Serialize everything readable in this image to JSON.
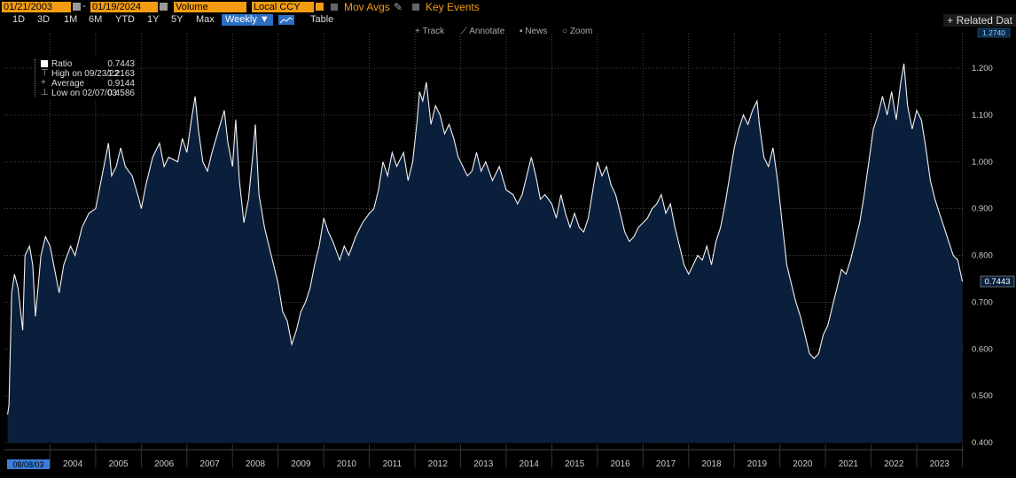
{
  "toolbar": {
    "start_date": "01/21/2003",
    "end_date": "01/19/2024",
    "volume_label": "Volume",
    "currency_label": "Local CCY",
    "mov_avgs_label": "Mov Avgs",
    "key_events_label": "Key Events",
    "range_buttons": [
      "1D",
      "3D",
      "1M",
      "6M",
      "YTD",
      "1Y",
      "5Y",
      "Max"
    ],
    "frequency_label": "Weekly ▼",
    "table_label": "Table",
    "related_label": "+ Related Dat",
    "track_label": "Track",
    "annotate_label": "Annotate",
    "news_label": "News",
    "zoom_label": "Zoom"
  },
  "legend": {
    "ratio_label": "Ratio",
    "ratio_value": "0.7443",
    "high_label": "High on 09/23/22",
    "high_value": "1.2163",
    "average_label": "Average",
    "average_value": "0.9144",
    "low_label": "Low on 02/07/03",
    "low_value": "0.4586"
  },
  "colors": {
    "area_fill": "#0a1f3c",
    "line": "#f2f2f2",
    "last_value_box": "#0a1f3c",
    "top_value_box": "#0a2a4a"
  },
  "chart_data": {
    "type": "area",
    "ylim": [
      0.4,
      1.274
    ],
    "yticks": [
      "1.200",
      "1.100",
      "1.000",
      "0.900",
      "0.800",
      "0.700",
      "0.600",
      "0.500",
      "0.400"
    ],
    "x_axis_start_label": "08/08/03",
    "xticks": [
      "2004",
      "2005",
      "2006",
      "2007",
      "2008",
      "2009",
      "2010",
      "2011",
      "2012",
      "2013",
      "2014",
      "2015",
      "2016",
      "2017",
      "2018",
      "2019",
      "2020",
      "2021",
      "2022",
      "2023"
    ],
    "top_value_label": "1.2740",
    "last_value_label": "0.7443",
    "series": [
      {
        "values": [
          [
            "2003.07",
            0.46
          ],
          [
            "2003.10",
            0.48
          ],
          [
            "2003.16",
            0.72
          ],
          [
            "2003.22",
            0.76
          ],
          [
            "2003.30",
            0.73
          ],
          [
            "2003.40",
            0.64
          ],
          [
            "2003.45",
            0.8
          ],
          [
            "2003.55",
            0.82
          ],
          [
            "2003.62",
            0.78
          ],
          [
            "2003.68",
            0.67
          ],
          [
            "2003.80",
            0.8
          ],
          [
            "2003.90",
            0.84
          ],
          [
            "2004.00",
            0.82
          ],
          [
            "2004.10",
            0.77
          ],
          [
            "2004.20",
            0.72
          ],
          [
            "2004.30",
            0.78
          ],
          [
            "2004.45",
            0.82
          ],
          [
            "2004.55",
            0.8
          ],
          [
            "2004.70",
            0.86
          ],
          [
            "2004.85",
            0.89
          ],
          [
            "2005.00",
            0.9
          ],
          [
            "2005.10",
            0.95
          ],
          [
            "2005.20",
            1.0
          ],
          [
            "2005.28",
            1.04
          ],
          [
            "2005.35",
            0.97
          ],
          [
            "2005.45",
            0.99
          ],
          [
            "2005.55",
            1.03
          ],
          [
            "2005.65",
            0.99
          ],
          [
            "2005.80",
            0.97
          ],
          [
            "2005.95",
            0.92
          ],
          [
            "2006.00",
            0.9
          ],
          [
            "2006.10",
            0.95
          ],
          [
            "2006.25",
            1.01
          ],
          [
            "2006.40",
            1.04
          ],
          [
            "2006.50",
            0.99
          ],
          [
            "2006.60",
            1.01
          ],
          [
            "2006.80",
            1.0
          ],
          [
            "2006.90",
            1.05
          ],
          [
            "2007.00",
            1.02
          ],
          [
            "2007.10",
            1.09
          ],
          [
            "2007.18",
            1.14
          ],
          [
            "2007.25",
            1.07
          ],
          [
            "2007.35",
            1.0
          ],
          [
            "2007.45",
            0.98
          ],
          [
            "2007.55",
            1.02
          ],
          [
            "2007.70",
            1.07
          ],
          [
            "2007.82",
            1.11
          ],
          [
            "2007.90",
            1.04
          ],
          [
            "2008.00",
            0.99
          ],
          [
            "2008.07",
            1.09
          ],
          [
            "2008.15",
            0.96
          ],
          [
            "2008.25",
            0.87
          ],
          [
            "2008.35",
            0.92
          ],
          [
            "2008.45",
            1.02
          ],
          [
            "2008.50",
            1.08
          ],
          [
            "2008.58",
            0.93
          ],
          [
            "2008.70",
            0.86
          ],
          [
            "2008.80",
            0.82
          ],
          [
            "2008.90",
            0.78
          ],
          [
            "2009.00",
            0.74
          ],
          [
            "2009.10",
            0.68
          ],
          [
            "2009.20",
            0.66
          ],
          [
            "2009.30",
            0.61
          ],
          [
            "2009.40",
            0.64
          ],
          [
            "2009.50",
            0.68
          ],
          [
            "2009.60",
            0.7
          ],
          [
            "2009.70",
            0.73
          ],
          [
            "2009.80",
            0.78
          ],
          [
            "2009.90",
            0.82
          ],
          [
            "2010.00",
            0.88
          ],
          [
            "2010.10",
            0.85
          ],
          [
            "2010.20",
            0.83
          ],
          [
            "2010.35",
            0.79
          ],
          [
            "2010.45",
            0.82
          ],
          [
            "2010.55",
            0.8
          ],
          [
            "2010.70",
            0.84
          ],
          [
            "2010.85",
            0.87
          ],
          [
            "2011.00",
            0.89
          ],
          [
            "2011.10",
            0.9
          ],
          [
            "2011.20",
            0.94
          ],
          [
            "2011.30",
            1.0
          ],
          [
            "2011.40",
            0.97
          ],
          [
            "2011.50",
            1.02
          ],
          [
            "2011.60",
            0.99
          ],
          [
            "2011.75",
            1.02
          ],
          [
            "2011.85",
            0.96
          ],
          [
            "2011.95",
            1.0
          ],
          [
            "2012.05",
            1.09
          ],
          [
            "2012.10",
            1.15
          ],
          [
            "2012.17",
            1.13
          ],
          [
            "2012.25",
            1.17
          ],
          [
            "2012.35",
            1.08
          ],
          [
            "2012.45",
            1.12
          ],
          [
            "2012.55",
            1.1
          ],
          [
            "2012.65",
            1.06
          ],
          [
            "2012.75",
            1.08
          ],
          [
            "2012.85",
            1.05
          ],
          [
            "2012.95",
            1.01
          ],
          [
            "2013.05",
            0.99
          ],
          [
            "2013.15",
            0.97
          ],
          [
            "2013.25",
            0.98
          ],
          [
            "2013.35",
            1.02
          ],
          [
            "2013.45",
            0.98
          ],
          [
            "2013.55",
            1.0
          ],
          [
            "2013.70",
            0.96
          ],
          [
            "2013.85",
            0.99
          ],
          [
            "2014.00",
            0.94
          ],
          [
            "2014.15",
            0.93
          ],
          [
            "2014.25",
            0.91
          ],
          [
            "2014.35",
            0.93
          ],
          [
            "2014.45",
            0.97
          ],
          [
            "2014.55",
            1.01
          ],
          [
            "2014.65",
            0.97
          ],
          [
            "2014.75",
            0.92
          ],
          [
            "2014.85",
            0.93
          ],
          [
            "2015.00",
            0.91
          ],
          [
            "2015.10",
            0.88
          ],
          [
            "2015.20",
            0.93
          ],
          [
            "2015.30",
            0.89
          ],
          [
            "2015.40",
            0.86
          ],
          [
            "2015.50",
            0.89
          ],
          [
            "2015.60",
            0.86
          ],
          [
            "2015.70",
            0.85
          ],
          [
            "2015.80",
            0.88
          ],
          [
            "2015.90",
            0.94
          ],
          [
            "2016.00",
            1.0
          ],
          [
            "2016.10",
            0.97
          ],
          [
            "2016.20",
            0.99
          ],
          [
            "2016.30",
            0.95
          ],
          [
            "2016.40",
            0.93
          ],
          [
            "2016.50",
            0.89
          ],
          [
            "2016.60",
            0.85
          ],
          [
            "2016.70",
            0.83
          ],
          [
            "2016.80",
            0.84
          ],
          [
            "2016.90",
            0.86
          ],
          [
            "2017.00",
            0.87
          ],
          [
            "2017.10",
            0.88
          ],
          [
            "2017.20",
            0.9
          ],
          [
            "2017.30",
            0.91
          ],
          [
            "2017.40",
            0.93
          ],
          [
            "2017.50",
            0.89
          ],
          [
            "2017.60",
            0.91
          ],
          [
            "2017.70",
            0.86
          ],
          [
            "2017.80",
            0.82
          ],
          [
            "2017.90",
            0.78
          ],
          [
            "2018.00",
            0.76
          ],
          [
            "2018.10",
            0.78
          ],
          [
            "2018.20",
            0.8
          ],
          [
            "2018.30",
            0.79
          ],
          [
            "2018.40",
            0.82
          ],
          [
            "2018.50",
            0.78
          ],
          [
            "2018.60",
            0.83
          ],
          [
            "2018.70",
            0.86
          ],
          [
            "2018.80",
            0.91
          ],
          [
            "2018.90",
            0.97
          ],
          [
            "2019.00",
            1.03
          ],
          [
            "2019.10",
            1.07
          ],
          [
            "2019.20",
            1.1
          ],
          [
            "2019.30",
            1.08
          ],
          [
            "2019.40",
            1.11
          ],
          [
            "2019.50",
            1.13
          ],
          [
            "2019.55",
            1.08
          ],
          [
            "2019.65",
            1.01
          ],
          [
            "2019.75",
            0.99
          ],
          [
            "2019.85",
            1.03
          ],
          [
            "2019.95",
            0.96
          ],
          [
            "2020.05",
            0.87
          ],
          [
            "2020.15",
            0.78
          ],
          [
            "2020.25",
            0.74
          ],
          [
            "2020.35",
            0.7
          ],
          [
            "2020.45",
            0.67
          ],
          [
            "2020.55",
            0.63
          ],
          [
            "2020.65",
            0.59
          ],
          [
            "2020.75",
            0.58
          ],
          [
            "2020.85",
            0.59
          ],
          [
            "2020.95",
            0.63
          ],
          [
            "2021.05",
            0.65
          ],
          [
            "2021.15",
            0.69
          ],
          [
            "2021.25",
            0.73
          ],
          [
            "2021.35",
            0.77
          ],
          [
            "2021.45",
            0.76
          ],
          [
            "2021.55",
            0.79
          ],
          [
            "2021.65",
            0.83
          ],
          [
            "2021.75",
            0.87
          ],
          [
            "2021.85",
            0.93
          ],
          [
            "2021.95",
            1.0
          ],
          [
            "2022.05",
            1.07
          ],
          [
            "2022.15",
            1.1
          ],
          [
            "2022.25",
            1.14
          ],
          [
            "2022.35",
            1.1
          ],
          [
            "2022.45",
            1.15
          ],
          [
            "2022.55",
            1.09
          ],
          [
            "2022.65",
            1.17
          ],
          [
            "2022.72",
            1.21
          ],
          [
            "2022.80",
            1.12
          ],
          [
            "2022.90",
            1.07
          ],
          [
            "2023.00",
            1.11
          ],
          [
            "2023.10",
            1.09
          ],
          [
            "2023.20",
            1.03
          ],
          [
            "2023.30",
            0.96
          ],
          [
            "2023.40",
            0.92
          ],
          [
            "2023.50",
            0.89
          ],
          [
            "2023.60",
            0.86
          ],
          [
            "2023.70",
            0.83
          ],
          [
            "2023.80",
            0.8
          ],
          [
            "2023.90",
            0.79
          ],
          [
            "2024.00",
            0.7443
          ]
        ]
      }
    ]
  }
}
